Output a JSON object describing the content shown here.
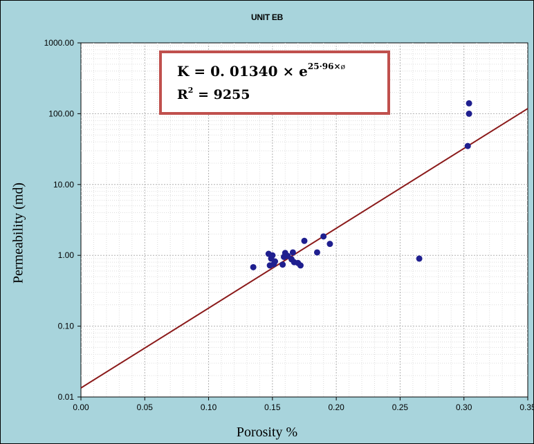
{
  "chart_data": {
    "type": "scatter",
    "title": "UNIT EB",
    "xlabel": "Porosity %",
    "ylabel": "Permeability (md)",
    "xlim": [
      0.0,
      0.35
    ],
    "ylim": [
      0.01,
      1000
    ],
    "yscale": "log",
    "grid": true,
    "x_ticks": [
      "0.00",
      "0.05",
      "0.10",
      "0.15",
      "0.20",
      "0.25",
      "0.30",
      "0.35"
    ],
    "y_ticks": [
      "0.01",
      "0.10",
      "1.00",
      "10.00",
      "100.00",
      "1000.00"
    ],
    "points": [
      {
        "x": 0.135,
        "y": 0.68
      },
      {
        "x": 0.147,
        "y": 1.05
      },
      {
        "x": 0.148,
        "y": 0.72
      },
      {
        "x": 0.149,
        "y": 0.9
      },
      {
        "x": 0.15,
        "y": 1.0
      },
      {
        "x": 0.151,
        "y": 0.75
      },
      {
        "x": 0.152,
        "y": 0.82
      },
      {
        "x": 0.158,
        "y": 0.74
      },
      {
        "x": 0.159,
        "y": 0.95
      },
      {
        "x": 0.16,
        "y": 1.08
      },
      {
        "x": 0.162,
        "y": 0.98
      },
      {
        "x": 0.165,
        "y": 0.88
      },
      {
        "x": 0.166,
        "y": 1.1
      },
      {
        "x": 0.167,
        "y": 0.8
      },
      {
        "x": 0.17,
        "y": 0.78
      },
      {
        "x": 0.172,
        "y": 0.72
      },
      {
        "x": 0.175,
        "y": 1.6
      },
      {
        "x": 0.185,
        "y": 1.1
      },
      {
        "x": 0.19,
        "y": 1.85
      },
      {
        "x": 0.195,
        "y": 1.45
      },
      {
        "x": 0.265,
        "y": 0.9
      },
      {
        "x": 0.303,
        "y": 35
      },
      {
        "x": 0.304,
        "y": 100
      },
      {
        "x": 0.304,
        "y": 140
      }
    ],
    "fit": {
      "a": 0.0134,
      "b": 25.96
    },
    "point_color": "#1f1f8f",
    "line_color": "#8b1a1a"
  },
  "equation": {
    "k_text": "K = 0. 01340 × e",
    "exponent": "25·96×",
    "phi": "ø",
    "r2_prefix": "R",
    "r2_sup": "2",
    "r2_value": " = 9255"
  }
}
